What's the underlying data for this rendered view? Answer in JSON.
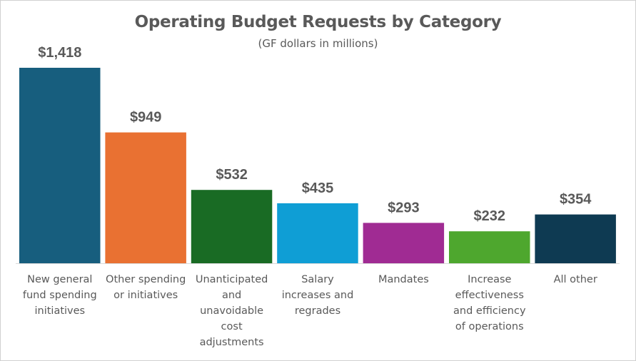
{
  "chart_data": {
    "type": "bar",
    "title": "Operating Budget Requests by Category",
    "subtitle": "(GF dollars in millions)",
    "xlabel": "",
    "ylabel": "",
    "ylim": [
      0,
      1418
    ],
    "grid": false,
    "legend": "none",
    "categories": [
      "New general fund spending initiatives",
      "Other spending or initiatives",
      "Unanticipated and unavoidable cost adjustments",
      "Salary increases and regrades",
      "Mandates",
      "Increase effectiveness and efficiency of operations",
      "All other"
    ],
    "category_lines": [
      [
        "New general",
        "fund spending",
        "initiatives"
      ],
      [
        "Other spending",
        "or initiatives"
      ],
      [
        "Unanticipated",
        "and",
        "unavoidable",
        "cost",
        "adjustments"
      ],
      [
        "Salary",
        "increases and",
        "regrades"
      ],
      [
        "Mandates"
      ],
      [
        "Increase",
        "effectiveness",
        "and efficiency",
        "of operations"
      ],
      [
        "All other"
      ]
    ],
    "values": [
      1418,
      949,
      532,
      435,
      293,
      232,
      354
    ],
    "data_labels": [
      "$1,418",
      "$949",
      "$532",
      "$435",
      "$293",
      "$232",
      "$354"
    ],
    "colors": [
      "#175E7E",
      "#E97132",
      "#196B24",
      "#0F9ED5",
      "#A02B93",
      "#4EA72E",
      "#0E3A52"
    ]
  }
}
